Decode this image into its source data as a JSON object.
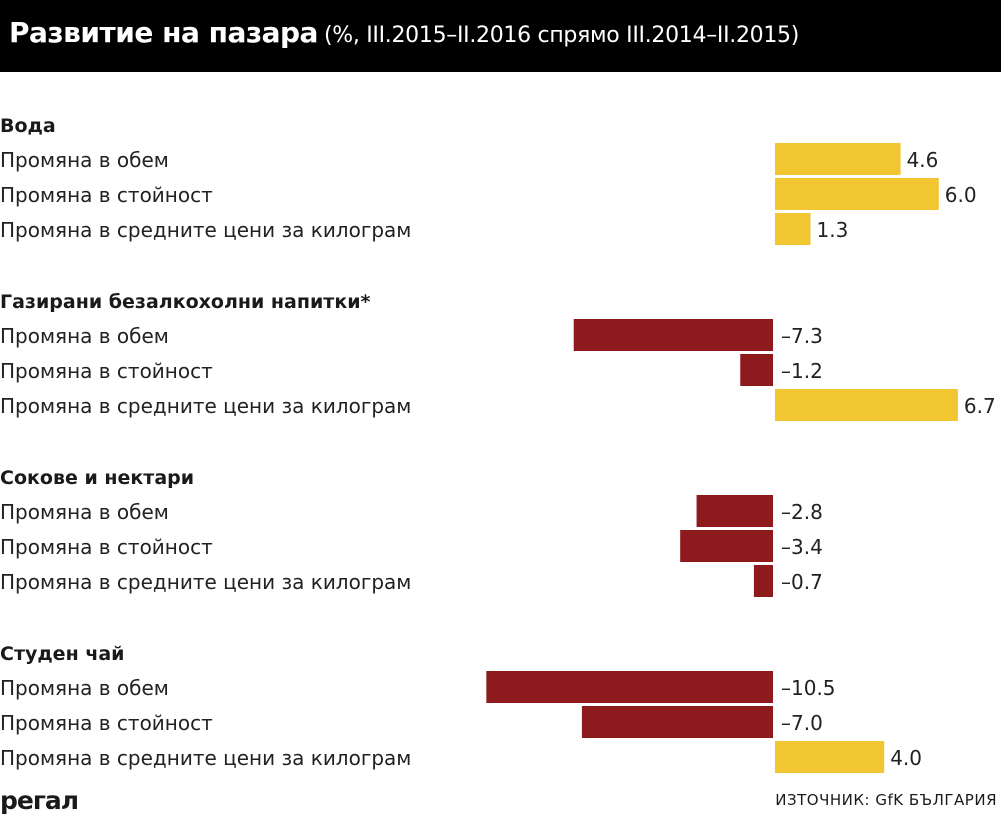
{
  "header": {
    "title": "Развитие на пазара",
    "subtitle": "(%, III.2015–II.2016 спрямо III.2014–II.2015)"
  },
  "colors": {
    "positive": "#f2c631",
    "negative": "#8d1a1d",
    "header_bg": "#000000"
  },
  "chart_data": {
    "type": "bar",
    "orientation": "horizontal",
    "groups": [
      {
        "name": "Вода",
        "items": [
          {
            "label": "Промяна в обем",
            "value": 4.6,
            "display": "4.6"
          },
          {
            "label": "Промяна в стойност",
            "value": 6.0,
            "display": "6.0"
          },
          {
            "label": "Промяна в средните цени за килограм",
            "value": 1.3,
            "display": "1.3"
          }
        ]
      },
      {
        "name": "Газирани безалкохолни напитки*",
        "items": [
          {
            "label": "Промяна в обем",
            "value": -7.3,
            "display": "–7.3"
          },
          {
            "label": "Промяна в стойност",
            "value": -1.2,
            "display": "–1.2"
          },
          {
            "label": "Промяна в средните цени за килограм",
            "value": 6.7,
            "display": "6.7"
          }
        ]
      },
      {
        "name": "Сокове и нектари",
        "items": [
          {
            "label": "Промяна в обем",
            "value": -2.8,
            "display": "–2.8"
          },
          {
            "label": "Промяна в стойност",
            "value": -3.4,
            "display": "–3.4"
          },
          {
            "label": "Промяна в средните цени за килограм",
            "value": -0.7,
            "display": "–0.7"
          }
        ]
      },
      {
        "name": "Студен чай",
        "items": [
          {
            "label": "Промяна в обем",
            "value": -10.5,
            "display": "–10.5"
          },
          {
            "label": "Промяна в стойност",
            "value": -7.0,
            "display": "–7.0"
          },
          {
            "label": "Промяна в средните цени за килограм",
            "value": 4.0,
            "display": "4.0"
          }
        ]
      }
    ]
  },
  "footer": {
    "logo": "регал",
    "source": "ИЗТОЧНИК: GfK БЪЛГАРИЯ"
  }
}
